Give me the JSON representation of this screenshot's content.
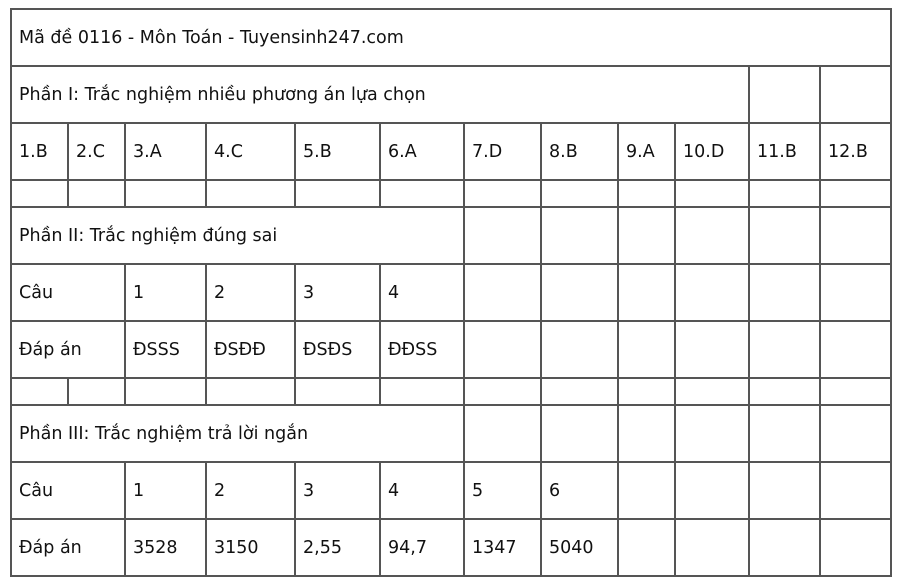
{
  "title": "Mã đề 0116 - Môn Toán - Tuyensinh247.com",
  "part1": {
    "heading": "Phần I: Trắc nghiệm nhiều phương án lựa chọn",
    "answers": [
      "1.B",
      "2.C",
      "3.A",
      "4.C",
      "5.B",
      "6.A",
      "7.D",
      "8.B",
      "9.A",
      "10.D",
      "11.B",
      "12.B"
    ]
  },
  "part2": {
    "heading": "Phần II: Trắc nghiệm đúng sai",
    "question_label": "Câu",
    "answer_label": "Đáp án",
    "questions": [
      "1",
      "2",
      "3",
      "4"
    ],
    "answers": [
      "ĐSSS",
      "ĐSĐĐ",
      "ĐSĐS",
      "ĐĐSS"
    ]
  },
  "part3": {
    "heading": "Phần III: Trắc nghiệm trả lời ngắn",
    "question_label": "Câu",
    "answer_label": "Đáp án",
    "questions": [
      "1",
      "2",
      "3",
      "4",
      "5",
      "6"
    ],
    "answers": [
      "3528",
      "3150",
      "2,55",
      "94,7",
      "1347",
      "5040"
    ]
  }
}
